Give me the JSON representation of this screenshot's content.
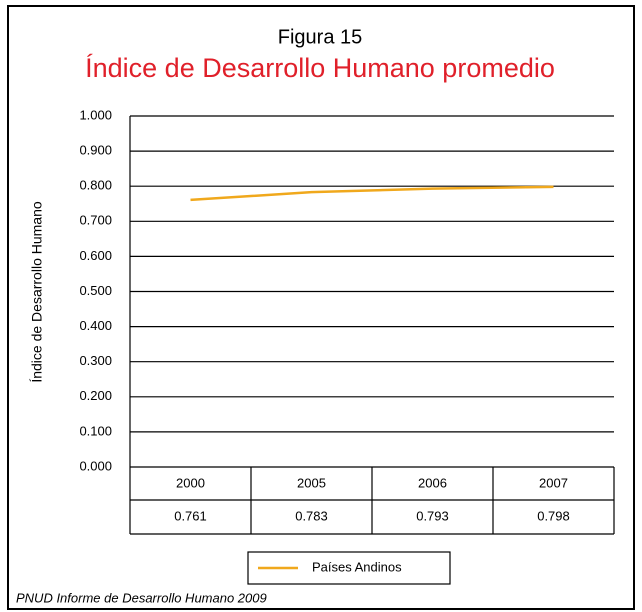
{
  "chart_data": {
    "type": "line",
    "title": "Figura 15",
    "subtitle": "Índice de Desarrollo Humano promedio",
    "y_label": "Índice de Desarrollo Humano",
    "categories": [
      "2000",
      "2005",
      "2006",
      "2007"
    ],
    "series": [
      {
        "name": "Países Andinos",
        "color": "#f0a81c",
        "values": [
          0.761,
          0.783,
          0.793,
          0.798
        ]
      }
    ],
    "ylim": [
      0,
      1
    ],
    "yticks": [
      {
        "value": 0,
        "label": "0.000"
      },
      {
        "value": 0.1,
        "label": "0.100"
      },
      {
        "value": 0.2,
        "label": "0.200"
      },
      {
        "value": 0.3,
        "label": "0.300"
      },
      {
        "value": 0.4,
        "label": "0.400"
      },
      {
        "value": 0.5,
        "label": "0.500"
      },
      {
        "value": 0.6,
        "label": "0.600"
      },
      {
        "value": 0.7,
        "label": "0.700"
      },
      {
        "value": 0.8,
        "label": "0.800"
      },
      {
        "value": 0.9,
        "label": "0.900"
      },
      {
        "value": 1,
        "label": "1.000"
      }
    ],
    "grid": true,
    "source": "PNUD Informe de Desarrollo Humano 2009"
  }
}
